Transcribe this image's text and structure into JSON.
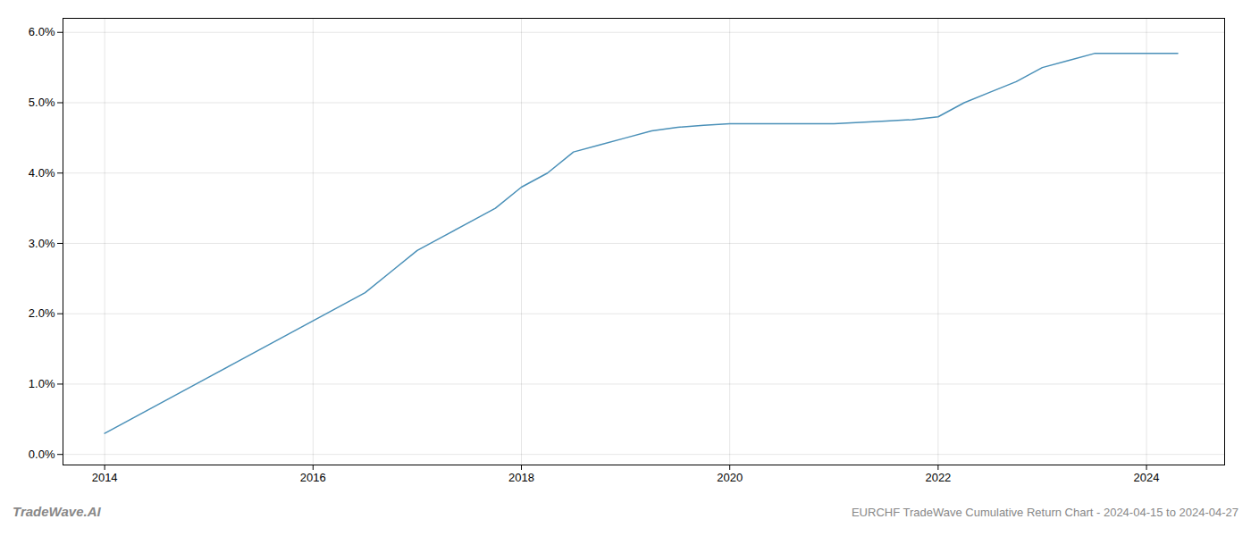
{
  "chart_data": {
    "type": "line",
    "title": "EURCHF TradeWave Cumulative Return Chart - 2024-04-15 to 2024-04-27",
    "annotations": [
      "TradeWave.AI"
    ],
    "color": "#4a90b8",
    "grid": true,
    "xlim": [
      2013.6,
      2024.75
    ],
    "ylim": [
      -0.0015,
      0.062
    ],
    "xticks": [
      2014,
      2016,
      2018,
      2020,
      2022,
      2024
    ],
    "yticks": [
      {
        "value": 0.0,
        "label": "0.0%"
      },
      {
        "value": 0.01,
        "label": "1.0%"
      },
      {
        "value": 0.02,
        "label": "2.0%"
      },
      {
        "value": 0.03,
        "label": "3.0%"
      },
      {
        "value": 0.04,
        "label": "4.0%"
      },
      {
        "value": 0.05,
        "label": "5.0%"
      },
      {
        "value": 0.06,
        "label": "6.0%"
      }
    ],
    "x": [
      2014.0,
      2014.25,
      2014.5,
      2014.75,
      2015.0,
      2015.25,
      2015.5,
      2015.75,
      2016.0,
      2016.25,
      2016.5,
      2016.75,
      2017.0,
      2017.25,
      2017.5,
      2017.75,
      2018.0,
      2018.25,
      2018.5,
      2018.75,
      2019.0,
      2019.25,
      2019.5,
      2019.75,
      2020.0,
      2020.25,
      2020.5,
      2020.75,
      2021.0,
      2021.25,
      2021.5,
      2021.75,
      2022.0,
      2022.25,
      2022.5,
      2022.75,
      2023.0,
      2023.25,
      2023.5,
      2023.75,
      2024.0,
      2024.25,
      2024.3
    ],
    "values": [
      0.003,
      0.005,
      0.007,
      0.009,
      0.011,
      0.013,
      0.015,
      0.017,
      0.019,
      0.021,
      0.023,
      0.026,
      0.029,
      0.031,
      0.033,
      0.035,
      0.038,
      0.04,
      0.043,
      0.044,
      0.045,
      0.046,
      0.0465,
      0.0468,
      0.047,
      0.047,
      0.047,
      0.047,
      0.047,
      0.0472,
      0.0474,
      0.0476,
      0.048,
      0.05,
      0.0515,
      0.053,
      0.055,
      0.056,
      0.057,
      0.057,
      0.057,
      0.057,
      0.057
    ]
  }
}
